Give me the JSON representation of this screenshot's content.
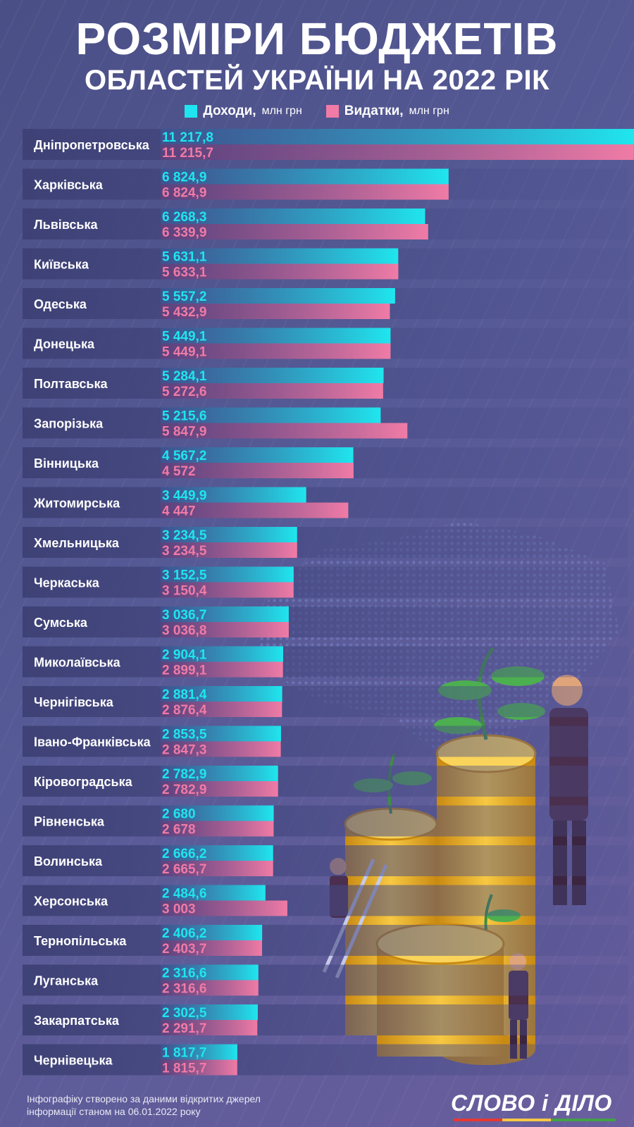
{
  "title_line1": "РОЗМІРИ БЮДЖЕТІВ",
  "title_line2": "ОБЛАСТЕЙ УКРАЇНИ НА 2022 РІК",
  "legend": {
    "income_label": "Доходи,",
    "expense_label": "Видатки,",
    "unit": "млн грн"
  },
  "footer_note": "Інфографіку створено за даними відкритих джерел інформації станом на 06.01.2022 року",
  "logo_text": "СЛОВО і ДІЛО",
  "colors": {
    "income": "#1fe6ee",
    "expense": "#f07ba6"
  },
  "chart_data": {
    "type": "bar",
    "orientation": "horizontal",
    "categories": [
      "Дніпропетровська",
      "Харківська",
      "Львівська",
      "Київська",
      "Одеська",
      "Донецька",
      "Полтавська",
      "Запорізька",
      "Вінницька",
      "Житомирська",
      "Хмельницька",
      "Черкаська",
      "Сумська",
      "Миколаївська",
      "Чернігівська",
      "Івано-Франківська",
      "Кіровоградська",
      "Рівненська",
      "Волинська",
      "Херсонська",
      "Тернопільська",
      "Луганська",
      "Закарпатська",
      "Чернівецька"
    ],
    "series": [
      {
        "name": "Доходи",
        "values": [
          11217.8,
          6824.9,
          6268.3,
          5631.1,
          5557.2,
          5449.1,
          5284.1,
          5215.6,
          4567.2,
          3449.9,
          3234.5,
          3152.5,
          3036.7,
          2904.1,
          2881.4,
          2853.5,
          2782.9,
          2680,
          2666.2,
          2484.6,
          2406.2,
          2316.6,
          2302.5,
          1817.7
        ],
        "labels": [
          "11 217,8",
          "6 824,9",
          "6 268,3",
          "5 631,1",
          "5 557,2",
          "5 449,1",
          "5 284,1",
          "5 215,6",
          "4 567,2",
          "3 449,9",
          "3 234,5",
          "3 152,5",
          "3 036,7",
          "2 904,1",
          "2 881,4",
          "2 853,5",
          "2 782,9",
          "2 680",
          "2 666,2",
          "2 484,6",
          "2 406,2",
          "2 316,6",
          "2 302,5",
          "1 817,7"
        ]
      },
      {
        "name": "Видатки",
        "values": [
          11215.7,
          6824.9,
          6339.9,
          5633.1,
          5432.9,
          5449.1,
          5272.6,
          5847.9,
          4572,
          4447,
          3234.5,
          3150.4,
          3036.8,
          2899.1,
          2876.4,
          2847.3,
          2782.9,
          2678,
          2665.7,
          3003,
          2403.7,
          2316.6,
          2291.7,
          1815.7
        ],
        "labels": [
          "11 215,7",
          "6 824,9",
          "6 339,9",
          "5 633,1",
          "5 432,9",
          "5 449,1",
          "5 272,6",
          "5 847,9",
          "4 572",
          "4 447",
          "3 234,5",
          "3 150,4",
          "3 036,8",
          "2 899,1",
          "2 876,4",
          "2 847,3",
          "2 782,9",
          "2 678",
          "2 665,7",
          "3 003",
          "2 403,7",
          "2 316,6",
          "2 291,7",
          "1 815,7"
        ]
      }
    ],
    "xlim": [
      0,
      11217.8
    ],
    "legend_position": "top-center",
    "grid": false
  }
}
